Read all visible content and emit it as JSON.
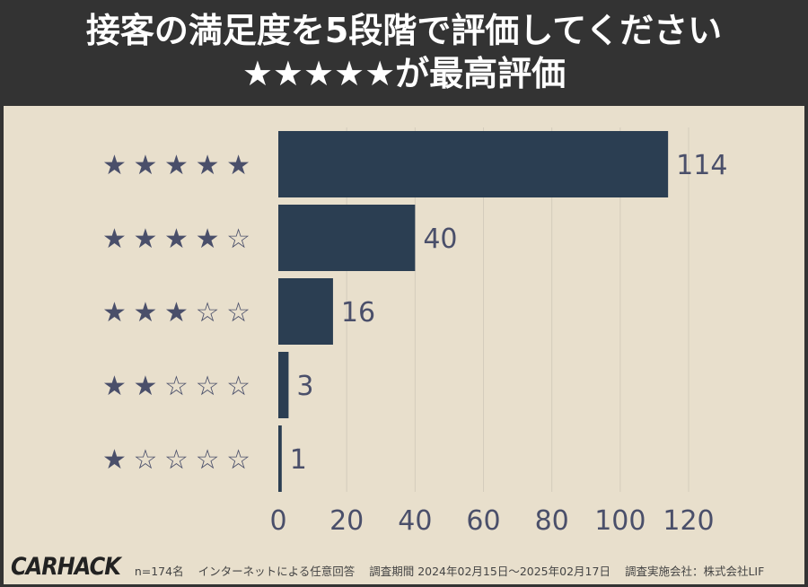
{
  "header": {
    "line1": "接客の満足度を5段階で評価してください",
    "line2": "★★★★★が最高評価"
  },
  "chart_data": {
    "type": "bar",
    "orientation": "horizontal",
    "categories": [
      "★★★★★",
      "★★★★☆",
      "★★★☆☆",
      "★★☆☆☆",
      "★☆☆☆☆"
    ],
    "values": [
      114,
      40,
      16,
      3,
      1
    ],
    "xlim": [
      0,
      120
    ],
    "xticks": [
      "0",
      "20",
      "40",
      "60",
      "80",
      "100",
      "120"
    ],
    "grid": true,
    "bar_color": "#2b3e52"
  },
  "footer": {
    "logo": "CARHACK",
    "sample": "n=174名",
    "method": "インターネットによる任意回答",
    "period": "調査期間 2024年02月15日〜2025年02月17日",
    "company": "調査実施会社：株式会社LIF"
  }
}
